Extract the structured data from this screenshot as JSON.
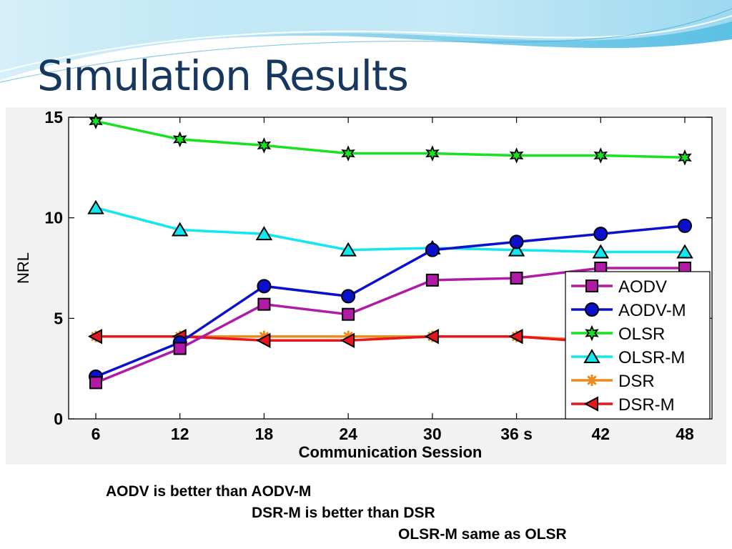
{
  "slide": {
    "title": "Simulation Results",
    "notes": [
      "AODV is better than AODV-M",
      "DSR-M is better than DSR",
      "OLSR-M same as OLSR"
    ]
  },
  "chart_data": {
    "type": "line",
    "title": "",
    "xlabel": "Communication Session",
    "ylabel": "NRL",
    "categories": [
      "6",
      "12",
      "18",
      "24",
      "30",
      "36 s",
      "42",
      "48"
    ],
    "ylim": [
      0,
      15
    ],
    "yticks": [
      0,
      5,
      10,
      15
    ],
    "grid": false,
    "legend_position": "bottom-right",
    "series": [
      {
        "name": "AODV",
        "color": "#b01aa6",
        "marker": "square",
        "values": [
          1.8,
          3.5,
          5.7,
          5.2,
          6.9,
          7.0,
          7.5,
          7.5
        ]
      },
      {
        "name": "AODV-M",
        "color": "#0a10cc",
        "marker": "circle",
        "values": [
          2.1,
          3.8,
          6.6,
          6.1,
          8.4,
          8.8,
          9.2,
          9.6
        ]
      },
      {
        "name": "OLSR",
        "color": "#16e31f",
        "marker": "hexagram",
        "values": [
          14.8,
          13.9,
          13.6,
          13.2,
          13.2,
          13.1,
          13.1,
          13.0
        ]
      },
      {
        "name": "OLSR-M",
        "color": "#11e7ef",
        "marker": "triangle",
        "values": [
          10.5,
          9.4,
          9.2,
          8.4,
          8.5,
          8.4,
          8.3,
          8.3
        ]
      },
      {
        "name": "DSR",
        "color": "#ec8a1a",
        "marker": "asterisk",
        "values": [
          4.1,
          4.1,
          4.1,
          4.1,
          4.1,
          4.1,
          3.9,
          3.9
        ]
      },
      {
        "name": "DSR-M",
        "color": "#e8161d",
        "marker": "left-triangle",
        "values": [
          4.1,
          4.1,
          3.9,
          3.9,
          4.1,
          4.1,
          3.8,
          3.8
        ]
      }
    ]
  }
}
